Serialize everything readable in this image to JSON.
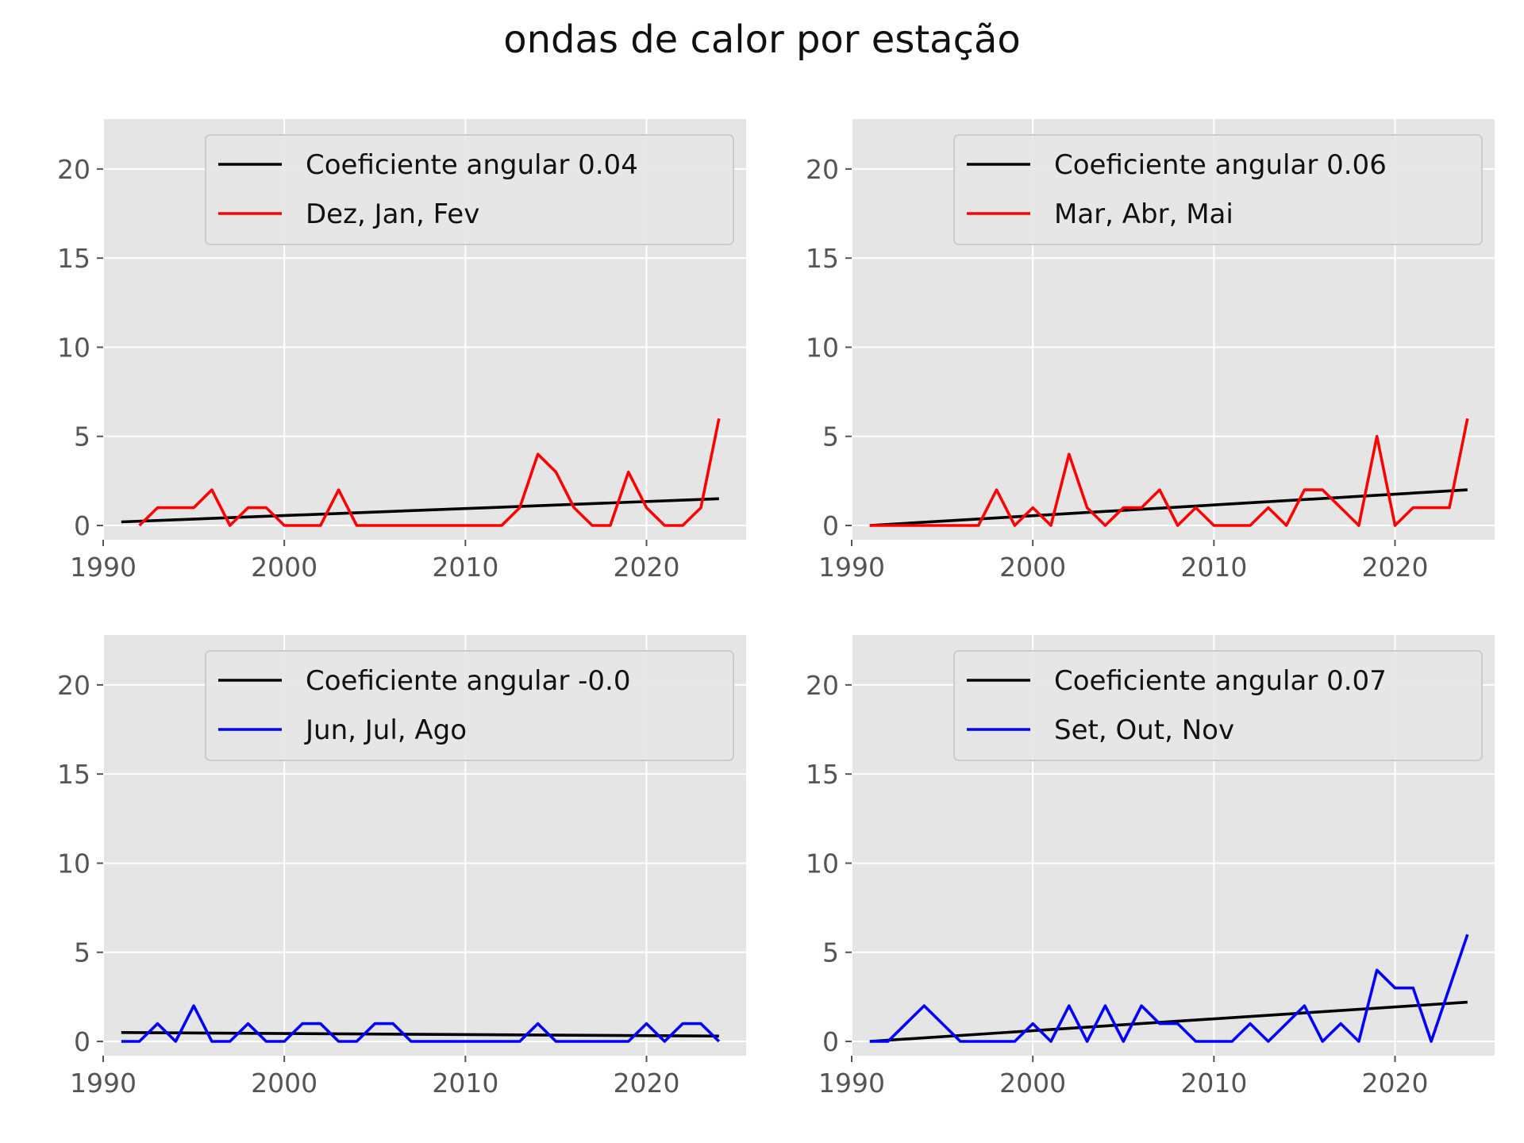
{
  "figure": {
    "title": "ondas de calor por estação"
  },
  "chart_data": [
    {
      "type": "line",
      "title": "",
      "xlabel": "",
      "ylabel": "",
      "xlim": [
        1990,
        2025.5
      ],
      "ylim": [
        -0.8,
        22.8
      ],
      "xticks": [
        1990,
        2000,
        2010,
        2020
      ],
      "yticks": [
        0,
        5,
        10,
        15,
        20
      ],
      "grid": true,
      "legend_position": "top-right",
      "series": [
        {
          "name": "Coeficiente angular 0.04",
          "color": "#000000",
          "kind": "trend",
          "x": [
            1991,
            2024
          ],
          "y": [
            0.2,
            1.5
          ]
        },
        {
          "name": "Dez, Jan, Fev",
          "color": "#ff0000",
          "kind": "data",
          "x": [
            1992,
            1993,
            1994,
            1995,
            1996,
            1997,
            1998,
            1999,
            2000,
            2001,
            2002,
            2003,
            2004,
            2005,
            2006,
            2007,
            2008,
            2009,
            2010,
            2011,
            2012,
            2013,
            2014,
            2015,
            2016,
            2017,
            2018,
            2019,
            2020,
            2021,
            2022,
            2023,
            2024
          ],
          "y": [
            0,
            1,
            1,
            1,
            2,
            0,
            1,
            1,
            0,
            0,
            0,
            2,
            0,
            0,
            0,
            0,
            0,
            0,
            0,
            0,
            0,
            1,
            4,
            3,
            1,
            0,
            0,
            3,
            1,
            0,
            0,
            1,
            6
          ]
        }
      ]
    },
    {
      "type": "line",
      "title": "",
      "xlabel": "",
      "ylabel": "",
      "xlim": [
        1990,
        2025.5
      ],
      "ylim": [
        -0.8,
        22.8
      ],
      "xticks": [
        1990,
        2000,
        2010,
        2020
      ],
      "yticks": [
        0,
        5,
        10,
        15,
        20
      ],
      "grid": true,
      "legend_position": "top-right",
      "series": [
        {
          "name": "Coeficiente angular 0.06",
          "color": "#000000",
          "kind": "trend",
          "x": [
            1991,
            2024
          ],
          "y": [
            0.0,
            2.0
          ]
        },
        {
          "name": "Mar, Abr, Mai",
          "color": "#ff0000",
          "kind": "data",
          "x": [
            1991,
            1992,
            1993,
            1994,
            1995,
            1996,
            1997,
            1998,
            1999,
            2000,
            2001,
            2002,
            2003,
            2004,
            2005,
            2006,
            2007,
            2008,
            2009,
            2010,
            2011,
            2012,
            2013,
            2014,
            2015,
            2016,
            2017,
            2018,
            2019,
            2020,
            2021,
            2022,
            2023,
            2024
          ],
          "y": [
            0,
            0,
            0,
            0,
            0,
            0,
            0,
            2,
            0,
            1,
            0,
            4,
            1,
            0,
            1,
            1,
            2,
            0,
            1,
            0,
            0,
            0,
            1,
            0,
            2,
            2,
            1,
            0,
            5,
            0,
            1,
            1,
            1,
            6
          ]
        }
      ]
    },
    {
      "type": "line",
      "title": "",
      "xlabel": "",
      "ylabel": "",
      "xlim": [
        1990,
        2025.5
      ],
      "ylim": [
        -0.8,
        22.8
      ],
      "xticks": [
        1990,
        2000,
        2010,
        2020
      ],
      "yticks": [
        0,
        5,
        10,
        15,
        20
      ],
      "grid": true,
      "legend_position": "top-right",
      "series": [
        {
          "name": "Coeficiente angular -0.0",
          "color": "#000000",
          "kind": "trend",
          "x": [
            1991,
            2024
          ],
          "y": [
            0.5,
            0.3
          ]
        },
        {
          "name": "Jun, Jul, Ago",
          "color": "#0000ff",
          "kind": "data",
          "x": [
            1991,
            1992,
            1993,
            1994,
            1995,
            1996,
            1997,
            1998,
            1999,
            2000,
            2001,
            2002,
            2003,
            2004,
            2005,
            2006,
            2007,
            2008,
            2009,
            2010,
            2011,
            2012,
            2013,
            2014,
            2015,
            2016,
            2017,
            2018,
            2019,
            2020,
            2021,
            2022,
            2023,
            2024
          ],
          "y": [
            0,
            0,
            1,
            0,
            2,
            0,
            0,
            1,
            0,
            0,
            1,
            1,
            0,
            0,
            1,
            1,
            0,
            0,
            0,
            0,
            0,
            0,
            0,
            1,
            0,
            0,
            0,
            0,
            0,
            1,
            0,
            1,
            1,
            0
          ]
        }
      ]
    },
    {
      "type": "line",
      "title": "",
      "xlabel": "",
      "ylabel": "",
      "xlim": [
        1990,
        2025.5
      ],
      "ylim": [
        -0.8,
        22.8
      ],
      "xticks": [
        1990,
        2000,
        2010,
        2020
      ],
      "yticks": [
        0,
        5,
        10,
        15,
        20
      ],
      "grid": true,
      "legend_position": "top-right",
      "series": [
        {
          "name": "Coeficiente angular 0.07",
          "color": "#000000",
          "kind": "trend",
          "x": [
            1991,
            2024
          ],
          "y": [
            0.0,
            2.2
          ]
        },
        {
          "name": "Set, Out, Nov",
          "color": "#0000ff",
          "kind": "data",
          "x": [
            1991,
            1992,
            1994,
            1996,
            1997,
            1998,
            1999,
            2000,
            2001,
            2002,
            2003,
            2004,
            2005,
            2006,
            2007,
            2008,
            2009,
            2010,
            2011,
            2012,
            2013,
            2014,
            2015,
            2016,
            2017,
            2018,
            2019,
            2020,
            2021,
            2022,
            2024
          ],
          "y": [
            0,
            0,
            2,
            0,
            0,
            0,
            0,
            1,
            0,
            2,
            0,
            2,
            0,
            2,
            1,
            1,
            0,
            0,
            0,
            1,
            0,
            1,
            2,
            0,
            1,
            0,
            4,
            3,
            3,
            0,
            6
          ]
        }
      ]
    }
  ]
}
